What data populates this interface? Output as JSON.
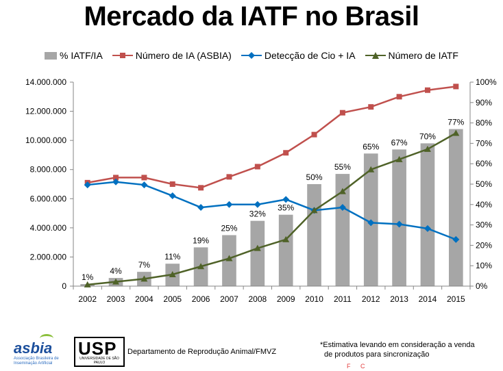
{
  "slide": {
    "title": "Mercado da IATF no Brasil",
    "department": "Departamento de Reprodução Animal/FMVZ",
    "footnote_line1": "*Estimativa levando em consideração a venda",
    "footnote_line2": "de produtos para sincronização",
    "stray_marks": "F C",
    "asbia_logo_word": "asbia",
    "asbia_logo_subtitle": "Associação Brasileira de Inseminação Artificial",
    "usp_logo_word": "USP",
    "usp_logo_subtitle": "UNIVERSIDADE DE SÃO PAULO"
  },
  "colors": {
    "bar": "#a6a6a6",
    "ia_asbia": "#c0504d",
    "cio_ia": "#0070c0",
    "iatf": "#4f6228"
  },
  "chart_data": {
    "type": "bar",
    "title": "Mercado da IATF no Brasil",
    "categories": [
      "2002",
      "2003",
      "2004",
      "2005",
      "2006",
      "2007",
      "2008",
      "2009",
      "2010",
      "2011",
      "2012",
      "2013",
      "2014",
      "2015"
    ],
    "y_left": {
      "ylim": [
        0,
        14000000
      ],
      "ticks": [
        "0",
        "2.000.000",
        "4.000.000",
        "6.000.000",
        "8.000.000",
        "10.000.000",
        "12.000.000",
        "14.000.000"
      ]
    },
    "y_right": {
      "ylim": [
        0,
        100
      ],
      "ticks": [
        "0%",
        "10%",
        "20%",
        "30%",
        "40%",
        "50%",
        "60%",
        "70%",
        "80%",
        "90%",
        "100%"
      ]
    },
    "legend_position": "top",
    "grid": false,
    "series": [
      {
        "name": "% IATF/IA",
        "kind": "bar",
        "axis": "right",
        "values": [
          1,
          4,
          7,
          11,
          19,
          25,
          32,
          35,
          50,
          55,
          65,
          67,
          70,
          77
        ],
        "labels": [
          "1%",
          "4%",
          "7%",
          "11%",
          "19%",
          "25%",
          "32%",
          "35%",
          "50%",
          "55%",
          "65%",
          "67%",
          "70%",
          "77%"
        ]
      },
      {
        "name": "Número de IA (ASBIA)",
        "kind": "line",
        "marker": "square",
        "axis": "left",
        "values": [
          7100000,
          7450000,
          7450000,
          7000000,
          6750000,
          7500000,
          8200000,
          9150000,
          10400000,
          11900000,
          12300000,
          13000000,
          13450000,
          13700000
        ]
      },
      {
        "name": "Detecção de Cio + IA",
        "kind": "line",
        "marker": "diamond",
        "axis": "left",
        "values": [
          6950000,
          7150000,
          6950000,
          6200000,
          5400000,
          5600000,
          5600000,
          5950000,
          5200000,
          5400000,
          4350000,
          4250000,
          3950000,
          3200000
        ]
      },
      {
        "name": "Número de IATF",
        "kind": "line",
        "marker": "triangle",
        "axis": "left",
        "values": [
          100000,
          300000,
          500000,
          800000,
          1350000,
          1900000,
          2600000,
          3200000,
          5200000,
          6500000,
          8000000,
          8700000,
          9400000,
          10500000
        ]
      }
    ]
  }
}
